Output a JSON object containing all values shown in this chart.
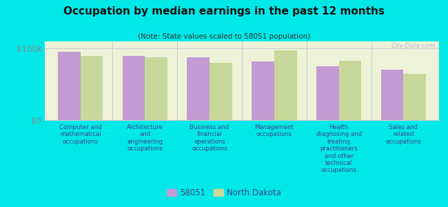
{
  "title": "Occupation by median earnings in the past 12 months",
  "subtitle": "(Note: State values scaled to 58051 population)",
  "background_color": "#00e8e8",
  "plot_bg_color": "#eef2d8",
  "categories": [
    "Computer and\nmathematical\noccupations",
    "Architecture\nand\nengineering\noccupations",
    "Business and\nfinancial\noperations\noccupations",
    "Management\noccupations",
    "Health\ndiagnosing and\ntreating\npractitioners\nand other\ntechnical\noccupations",
    "Sales and\nrelated\noccupations"
  ],
  "values_58051": [
    96000,
    90000,
    88000,
    82000,
    75000,
    70000
  ],
  "values_nd": [
    90000,
    88000,
    80000,
    97000,
    83000,
    65000
  ],
  "color_58051": "#c39bd3",
  "color_nd": "#c8d89a",
  "ylim": [
    0,
    110000
  ],
  "ytick_labels": [
    "$0",
    "$100k"
  ],
  "ytick_values": [
    0,
    100000
  ],
  "legend_label_58051": "58051",
  "legend_label_nd": "North Dakota",
  "bar_width": 0.35,
  "label_color": "#888888",
  "title_color": "#111111",
  "subtitle_color": "#333333",
  "xticklabel_color": "#444488",
  "watermark": "City-Data.com",
  "separator_color": "#cccccc",
  "hline_color": "#cccccc"
}
